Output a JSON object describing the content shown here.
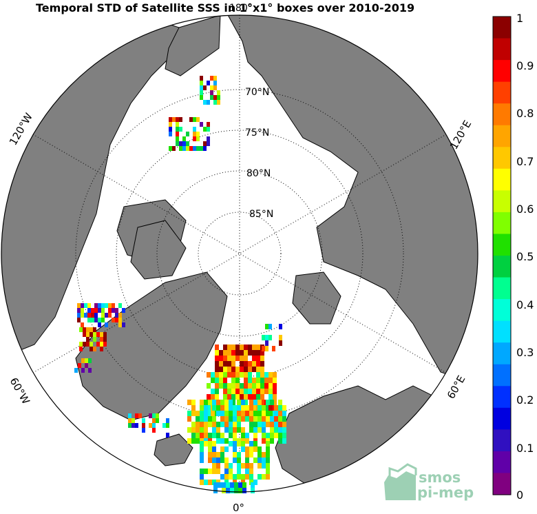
{
  "title": "Temporal STD of Satellite SSS in 1°x1° boxes over 2010-2019",
  "map": {
    "projection": "north polar stereographic",
    "lat_labels": [
      "70°N",
      "75°N",
      "80°N",
      "85°N"
    ],
    "lon_labels": [
      "180°",
      "120°E",
      "60°E",
      "0°",
      "60°W",
      "120°W"
    ],
    "land_color": "#808080",
    "ocean_color": "#ffffff"
  },
  "colorbar": {
    "ticks": [
      "1",
      "0.9",
      "0.8",
      "0.7",
      "0.6",
      "0.5",
      "0.4",
      "0.3",
      "0.2",
      "0.1",
      "0"
    ],
    "colors": [
      "#8b0000",
      "#c00000",
      "#ff0000",
      "#ff4000",
      "#ff7a00",
      "#ffa500",
      "#ffc800",
      "#ffff00",
      "#c8ff00",
      "#80ff00",
      "#20e000",
      "#00d040",
      "#00ff90",
      "#00ffd8",
      "#00e0ff",
      "#00a8ff",
      "#0070ff",
      "#0030ff",
      "#0000e0",
      "#3010c0",
      "#6000a8",
      "#800080"
    ]
  },
  "logo": {
    "line1": "smos",
    "line2": "pi-mep",
    "color": "#8cc8a8"
  }
}
